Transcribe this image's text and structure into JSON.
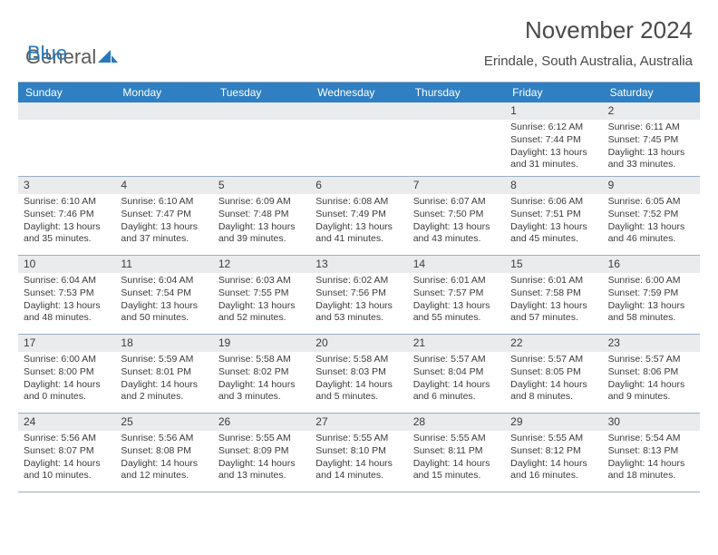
{
  "logo": {
    "text1": "General",
    "text2": "Blue"
  },
  "title": "November 2024",
  "location": "Erindale, South Australia, Australia",
  "colors": {
    "header_bg": "#2f7fc2",
    "daynum_bg": "#e9ebec",
    "border": "#9aaec2",
    "logo_blue": "#2878bd",
    "text": "#3b3b3b"
  },
  "dayNames": [
    "Sunday",
    "Monday",
    "Tuesday",
    "Wednesday",
    "Thursday",
    "Friday",
    "Saturday"
  ],
  "weeks": [
    [
      {
        "n": "",
        "sr": "",
        "ss": "",
        "dl": ""
      },
      {
        "n": "",
        "sr": "",
        "ss": "",
        "dl": ""
      },
      {
        "n": "",
        "sr": "",
        "ss": "",
        "dl": ""
      },
      {
        "n": "",
        "sr": "",
        "ss": "",
        "dl": ""
      },
      {
        "n": "",
        "sr": "",
        "ss": "",
        "dl": ""
      },
      {
        "n": "1",
        "sr": "Sunrise: 6:12 AM",
        "ss": "Sunset: 7:44 PM",
        "dl": "Daylight: 13 hours and 31 minutes."
      },
      {
        "n": "2",
        "sr": "Sunrise: 6:11 AM",
        "ss": "Sunset: 7:45 PM",
        "dl": "Daylight: 13 hours and 33 minutes."
      }
    ],
    [
      {
        "n": "3",
        "sr": "Sunrise: 6:10 AM",
        "ss": "Sunset: 7:46 PM",
        "dl": "Daylight: 13 hours and 35 minutes."
      },
      {
        "n": "4",
        "sr": "Sunrise: 6:10 AM",
        "ss": "Sunset: 7:47 PM",
        "dl": "Daylight: 13 hours and 37 minutes."
      },
      {
        "n": "5",
        "sr": "Sunrise: 6:09 AM",
        "ss": "Sunset: 7:48 PM",
        "dl": "Daylight: 13 hours and 39 minutes."
      },
      {
        "n": "6",
        "sr": "Sunrise: 6:08 AM",
        "ss": "Sunset: 7:49 PM",
        "dl": "Daylight: 13 hours and 41 minutes."
      },
      {
        "n": "7",
        "sr": "Sunrise: 6:07 AM",
        "ss": "Sunset: 7:50 PM",
        "dl": "Daylight: 13 hours and 43 minutes."
      },
      {
        "n": "8",
        "sr": "Sunrise: 6:06 AM",
        "ss": "Sunset: 7:51 PM",
        "dl": "Daylight: 13 hours and 45 minutes."
      },
      {
        "n": "9",
        "sr": "Sunrise: 6:05 AM",
        "ss": "Sunset: 7:52 PM",
        "dl": "Daylight: 13 hours and 46 minutes."
      }
    ],
    [
      {
        "n": "10",
        "sr": "Sunrise: 6:04 AM",
        "ss": "Sunset: 7:53 PM",
        "dl": "Daylight: 13 hours and 48 minutes."
      },
      {
        "n": "11",
        "sr": "Sunrise: 6:04 AM",
        "ss": "Sunset: 7:54 PM",
        "dl": "Daylight: 13 hours and 50 minutes."
      },
      {
        "n": "12",
        "sr": "Sunrise: 6:03 AM",
        "ss": "Sunset: 7:55 PM",
        "dl": "Daylight: 13 hours and 52 minutes."
      },
      {
        "n": "13",
        "sr": "Sunrise: 6:02 AM",
        "ss": "Sunset: 7:56 PM",
        "dl": "Daylight: 13 hours and 53 minutes."
      },
      {
        "n": "14",
        "sr": "Sunrise: 6:01 AM",
        "ss": "Sunset: 7:57 PM",
        "dl": "Daylight: 13 hours and 55 minutes."
      },
      {
        "n": "15",
        "sr": "Sunrise: 6:01 AM",
        "ss": "Sunset: 7:58 PM",
        "dl": "Daylight: 13 hours and 57 minutes."
      },
      {
        "n": "16",
        "sr": "Sunrise: 6:00 AM",
        "ss": "Sunset: 7:59 PM",
        "dl": "Daylight: 13 hours and 58 minutes."
      }
    ],
    [
      {
        "n": "17",
        "sr": "Sunrise: 6:00 AM",
        "ss": "Sunset: 8:00 PM",
        "dl": "Daylight: 14 hours and 0 minutes."
      },
      {
        "n": "18",
        "sr": "Sunrise: 5:59 AM",
        "ss": "Sunset: 8:01 PM",
        "dl": "Daylight: 14 hours and 2 minutes."
      },
      {
        "n": "19",
        "sr": "Sunrise: 5:58 AM",
        "ss": "Sunset: 8:02 PM",
        "dl": "Daylight: 14 hours and 3 minutes."
      },
      {
        "n": "20",
        "sr": "Sunrise: 5:58 AM",
        "ss": "Sunset: 8:03 PM",
        "dl": "Daylight: 14 hours and 5 minutes."
      },
      {
        "n": "21",
        "sr": "Sunrise: 5:57 AM",
        "ss": "Sunset: 8:04 PM",
        "dl": "Daylight: 14 hours and 6 minutes."
      },
      {
        "n": "22",
        "sr": "Sunrise: 5:57 AM",
        "ss": "Sunset: 8:05 PM",
        "dl": "Daylight: 14 hours and 8 minutes."
      },
      {
        "n": "23",
        "sr": "Sunrise: 5:57 AM",
        "ss": "Sunset: 8:06 PM",
        "dl": "Daylight: 14 hours and 9 minutes."
      }
    ],
    [
      {
        "n": "24",
        "sr": "Sunrise: 5:56 AM",
        "ss": "Sunset: 8:07 PM",
        "dl": "Daylight: 14 hours and 10 minutes."
      },
      {
        "n": "25",
        "sr": "Sunrise: 5:56 AM",
        "ss": "Sunset: 8:08 PM",
        "dl": "Daylight: 14 hours and 12 minutes."
      },
      {
        "n": "26",
        "sr": "Sunrise: 5:55 AM",
        "ss": "Sunset: 8:09 PM",
        "dl": "Daylight: 14 hours and 13 minutes."
      },
      {
        "n": "27",
        "sr": "Sunrise: 5:55 AM",
        "ss": "Sunset: 8:10 PM",
        "dl": "Daylight: 14 hours and 14 minutes."
      },
      {
        "n": "28",
        "sr": "Sunrise: 5:55 AM",
        "ss": "Sunset: 8:11 PM",
        "dl": "Daylight: 14 hours and 15 minutes."
      },
      {
        "n": "29",
        "sr": "Sunrise: 5:55 AM",
        "ss": "Sunset: 8:12 PM",
        "dl": "Daylight: 14 hours and 16 minutes."
      },
      {
        "n": "30",
        "sr": "Sunrise: 5:54 AM",
        "ss": "Sunset: 8:13 PM",
        "dl": "Daylight: 14 hours and 18 minutes."
      }
    ]
  ]
}
